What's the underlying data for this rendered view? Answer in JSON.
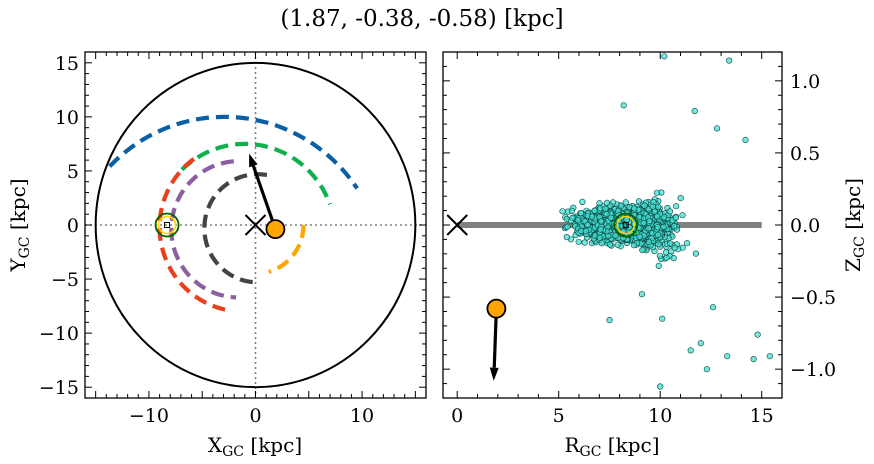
{
  "title": "(1.87, -0.38, -0.58) [kpc]",
  "colors": {
    "circle": "#000000",
    "guide": "#808080",
    "sun_ring": "#006400",
    "sun_inner": "#ffd700",
    "marker": "#ffa500",
    "midplane": "#808080",
    "stars_fill": "#40e0d0",
    "arm_colors": [
      "#0b5fa5",
      "#0fb14e",
      "#e8401c",
      "#8c5fa0",
      "#444444",
      "#ffa500"
    ]
  },
  "chart_data": [
    {
      "type": "line",
      "panel": "left",
      "xlabel_main": "X",
      "xlabel_sub": "GC",
      "xlabel_unit": " [kpc]",
      "ylabel_main": "Y",
      "ylabel_sub": "GC",
      "ylabel_unit": " [kpc]",
      "xlim": [
        -16,
        16
      ],
      "ylim": [
        -16,
        16
      ],
      "xticks": [
        -10,
        0,
        10
      ],
      "yticks": [
        -15,
        -10,
        -5,
        0,
        5,
        10,
        15
      ],
      "xtick_labels": [
        "−10",
        "0",
        "10"
      ],
      "ytick_labels": [
        "−15",
        "−10",
        "−5",
        "0",
        "5",
        "10",
        "15"
      ],
      "galaxy_radius": 15,
      "arms": [
        {
          "center": [
            -2.9,
            -5
          ],
          "radius": 15,
          "start_deg": 136,
          "end_deg": 34
        },
        {
          "center": [
            -1,
            -1
          ],
          "radius": 8.5,
          "start_deg": 134,
          "end_deg": 20
        },
        {
          "center": [
            -1.2,
            -0.2
          ],
          "radius": 7.8,
          "start_deg": 126,
          "end_deg": 262
        },
        {
          "center": [
            -1.6,
            -0.4
          ],
          "radius": 6.3,
          "start_deg": 94,
          "end_deg": 268
        },
        {
          "center": [
            0.2,
            -0.3
          ],
          "radius": 5.0,
          "start_deg": 80,
          "end_deg": 270
        },
        {
          "center": [
            0.0,
            0.0
          ],
          "radius": 4.5,
          "start_deg": 0,
          "end_deg": -74
        },
        {
          "center": [
            -7.0,
            0.5
          ],
          "radius": 2.0,
          "start_deg": 84,
          "end_deg": 130
        }
      ],
      "sun": [
        -8.3,
        0.0
      ],
      "galactic_center": [
        0,
        0
      ],
      "object_position": [
        1.87,
        -0.38
      ],
      "velocity_arrow_end": [
        -0.6,
        6.6
      ]
    },
    {
      "type": "scatter",
      "panel": "right",
      "xlabel_main": "R",
      "xlabel_sub": "GC",
      "xlabel_unit": " [kpc]",
      "ylabel_main": "Z",
      "ylabel_sub": "GC",
      "ylabel_unit": " [kpc]",
      "xlim": [
        -0.7,
        16
      ],
      "ylim": [
        -1.2,
        1.2
      ],
      "xticks": [
        0,
        5,
        10,
        15
      ],
      "yticks": [
        -1.0,
        -0.5,
        0.0,
        0.5,
        1.0
      ],
      "xtick_labels": [
        "0",
        "5",
        "10",
        "15"
      ],
      "ytick_labels": [
        "−1.0",
        "−0.5",
        "0.0",
        "0.5",
        "1.0"
      ],
      "midplane_segment": [
        0,
        15
      ],
      "sun": [
        8.3,
        0.0
      ],
      "galactic_center": [
        0,
        0
      ],
      "object_position": [
        1.93,
        -0.58
      ],
      "velocity_arrow_end": [
        1.8,
        -1.08
      ],
      "stars_count": 1600,
      "stars_distribution": "disk population concentrated near R=6-12 kpc, |Z|<0.3 kpc, flaring outward to |Z|~1 kpc by R~15 kpc",
      "outliers": [
        [
          10.2,
          1.17
        ],
        [
          13.4,
          1.14
        ],
        [
          8.2,
          0.83
        ],
        [
          11.7,
          0.79
        ],
        [
          14.2,
          0.59
        ],
        [
          12.8,
          0.67
        ],
        [
          15.4,
          -0.91
        ],
        [
          14.6,
          -0.93
        ],
        [
          13.3,
          -0.91
        ],
        [
          11.5,
          -0.87
        ],
        [
          14.8,
          -0.76
        ],
        [
          12.3,
          -1.0
        ],
        [
          10.0,
          -1.12
        ],
        [
          12.0,
          -0.82
        ],
        [
          10.1,
          -0.65
        ],
        [
          7.5,
          -0.66
        ],
        [
          9.1,
          -0.48
        ],
        [
          12.6,
          -0.57
        ]
      ]
    }
  ]
}
